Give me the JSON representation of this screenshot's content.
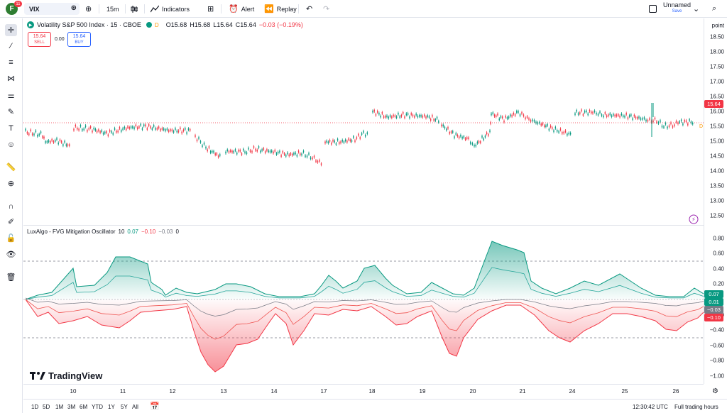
{
  "topbar": {
    "avatar_letter": "F",
    "badge": "11",
    "symbol": "VIX",
    "interval": "15m",
    "indicators_label": "Indicators",
    "alert_label": "Alert",
    "replay_label": "Replay",
    "layout_name": "Unnamed",
    "save_label": "Save"
  },
  "legend": {
    "title": "Volatility S&P 500 Index · 15 · CBOE",
    "dot_label": "D",
    "open": "O15.68",
    "high": "H15.68",
    "low": "L15.64",
    "close": "C15.64",
    "change": "−0.03 (−0.19%)",
    "sell_price": "15.64",
    "sell_label": "SELL",
    "spread": "0.00",
    "buy_price": "15.64",
    "buy_label": "BUY"
  },
  "oscillator_legend": {
    "name": "LuxAlgo - FVG Mitigation Oscillator",
    "length": "10",
    "v1": "0.07",
    "v2": "−0.10",
    "v3": "−0.03",
    "v4": "0"
  },
  "price_scale": {
    "unit": "point",
    "labels": [
      "18.50",
      "18.00",
      "17.50",
      "17.00",
      "16.50",
      "16.00",
      "15.50",
      "15.00",
      "14.50",
      "14.00",
      "13.50",
      "13.00",
      "12.50"
    ],
    "current_price": "15.64",
    "current_color": "#f23645"
  },
  "osc_scale": {
    "labels": [
      "0.80",
      "0.60",
      "0.40",
      "0.20",
      "−0.20",
      "−0.40",
      "−0.60",
      "−0.80",
      "−1.00"
    ],
    "tags": [
      {
        "text": "0.07",
        "color": "#089981"
      },
      {
        "text": "0.01",
        "color": "#089981"
      },
      {
        "text": "−0.03",
        "color": "#787b86"
      },
      {
        "text": "−0.10",
        "color": "#f23645"
      }
    ]
  },
  "time_axis": {
    "labels": [
      "10",
      "11",
      "12",
      "13",
      "14",
      "17",
      "18",
      "19",
      "20",
      "21",
      "24",
      "25",
      "26"
    ]
  },
  "bottombar": {
    "ranges": [
      "1D",
      "5D",
      "1M",
      "3M",
      "6M",
      "YTD",
      "1Y",
      "5Y",
      "All"
    ],
    "clock": "12:30:42 UTC",
    "session": "Full trading hours"
  },
  "branding": {
    "logo_text": "TradingView"
  },
  "colors": {
    "up": "#089981",
    "down": "#f23645",
    "accent": "#2962ff"
  }
}
